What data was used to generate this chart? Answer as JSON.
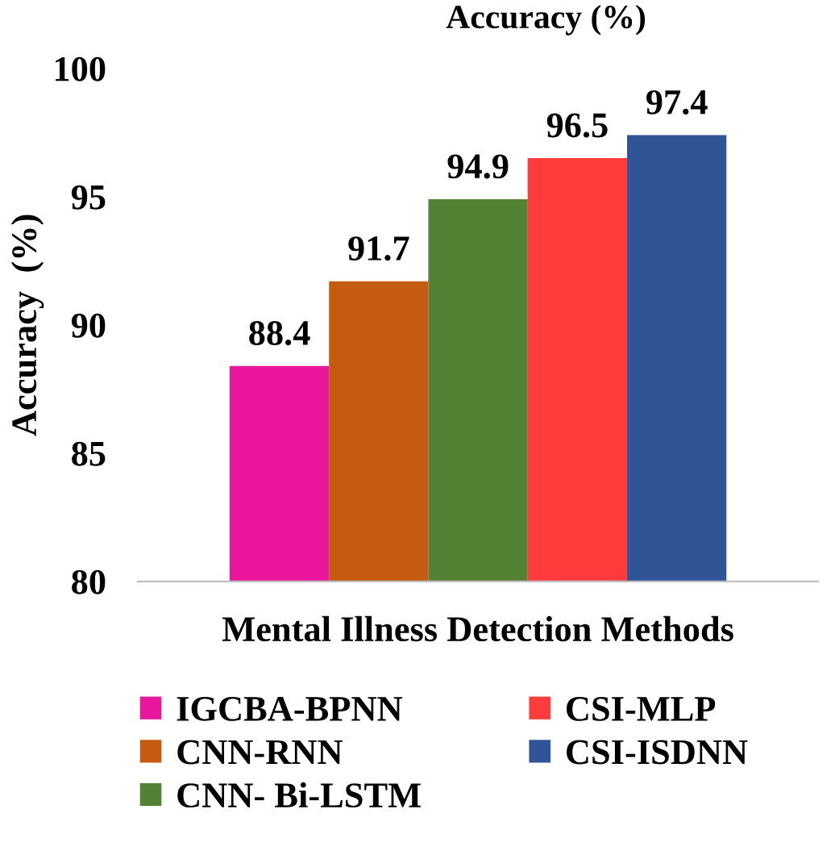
{
  "chart_data": {
    "type": "bar",
    "title": "Accuracy (%)",
    "xlabel": "Mental Illness Detection Methods",
    "ylabel": "Accuracy  (%)",
    "categories": [
      null
    ],
    "series": [
      {
        "name": "IGCBA-BPNN",
        "color": "#e8179b",
        "values": [
          88.4
        ]
      },
      {
        "name": "CNN-RNN",
        "color": "#c55a11",
        "values": [
          91.7
        ]
      },
      {
        "name": "CNN- Bi-LSTM",
        "color": "#548235",
        "values": [
          94.9
        ]
      },
      {
        "name": "CSI-MLP",
        "color": "#ff3b3b",
        "values": [
          96.5
        ]
      },
      {
        "name": "CSI-ISDNN",
        "color": "#2f5597",
        "values": [
          97.4
        ]
      }
    ],
    "ylim": [
      80,
      100
    ],
    "yticks": [
      80,
      85,
      90,
      95,
      100
    ],
    "data_labels": true,
    "legend": "bottom",
    "grid": false
  }
}
